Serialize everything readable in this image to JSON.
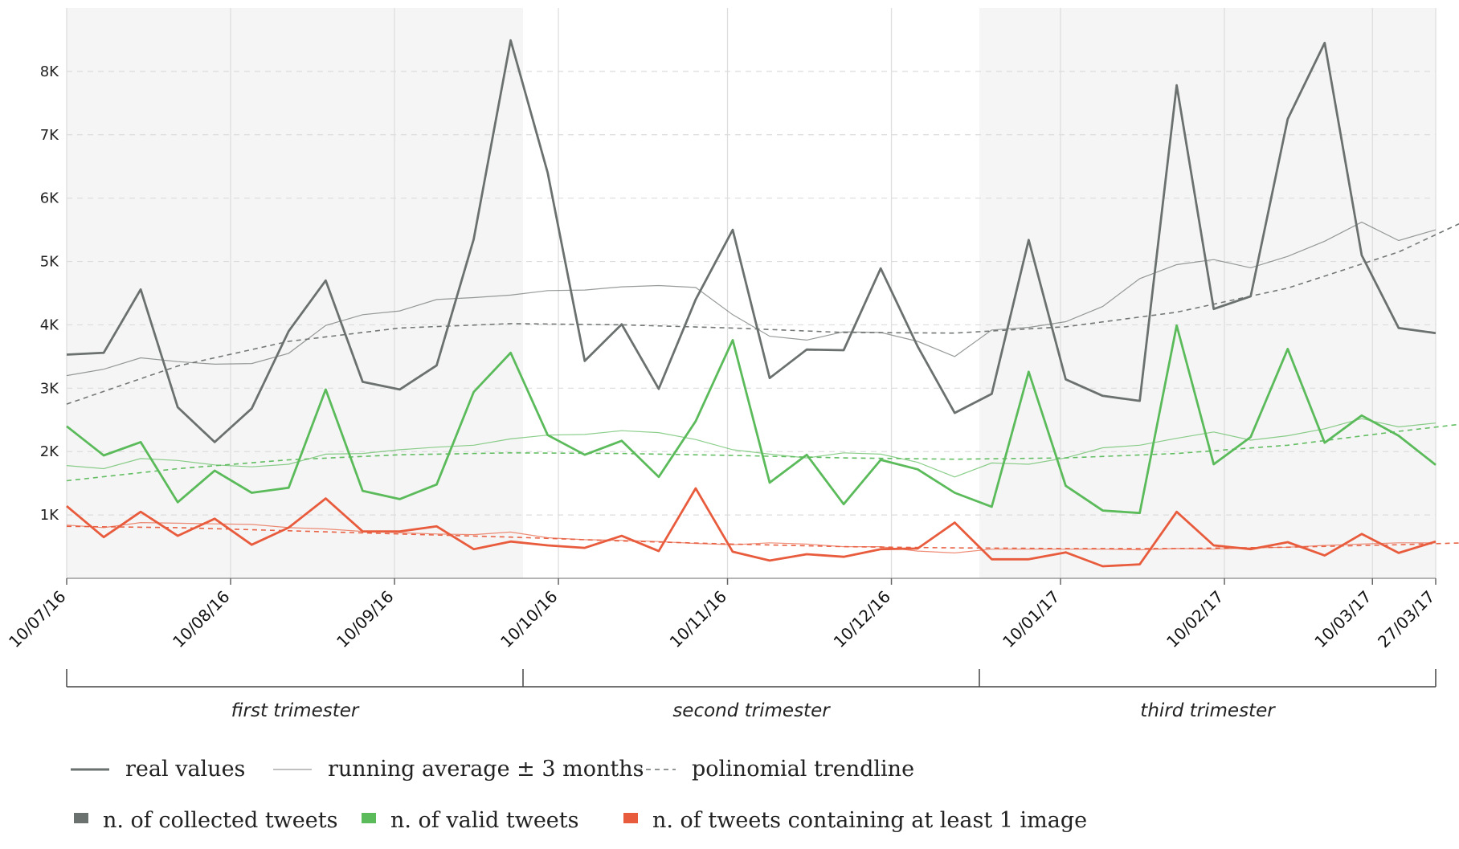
{
  "chart_data": {
    "type": "line",
    "y_ticks": [
      "1K",
      "2K",
      "3K",
      "4K",
      "5K",
      "6K",
      "7K",
      "8K"
    ],
    "ylim": [
      0,
      9000
    ],
    "x_tick_labels": [
      "10/07/16",
      "10/08/16",
      "10/09/16",
      "10/10/16",
      "10/11/16",
      "10/12/16",
      "10/01/17",
      "10/02/17",
      "10/03/17",
      "27/03/17"
    ],
    "x_start": "10/07/16",
    "x_end": "27/03/17",
    "grid": true,
    "trimesters": [
      {
        "label": "first trimester",
        "shaded": true
      },
      {
        "label": "second trimester",
        "shaded": false
      },
      {
        "label": "third trimester",
        "shaded": true
      }
    ],
    "series": [
      {
        "name": "n. of collected tweets",
        "color": "#6b716e",
        "real": [
          [
            0,
            3530
          ],
          [
            1,
            3560
          ],
          [
            2,
            4560
          ],
          [
            3,
            2700
          ],
          [
            4,
            2150
          ],
          [
            5,
            2680
          ],
          [
            6,
            3900
          ],
          [
            7,
            4700
          ],
          [
            8,
            3100
          ],
          [
            9,
            2980
          ],
          [
            10,
            3360
          ],
          [
            11,
            5350
          ],
          [
            12,
            8490
          ],
          [
            13,
            6400
          ],
          [
            14,
            3430
          ],
          [
            15,
            4010
          ],
          [
            16,
            2990
          ],
          [
            17,
            4400
          ],
          [
            18,
            5500
          ],
          [
            19,
            3160
          ],
          [
            20,
            3610
          ],
          [
            21,
            3600
          ],
          [
            22,
            4890
          ],
          [
            23,
            3660
          ],
          [
            24,
            2610
          ],
          [
            25,
            2910
          ],
          [
            26,
            5340
          ],
          [
            27,
            3140
          ],
          [
            28,
            2880
          ],
          [
            29,
            2800
          ],
          [
            30,
            7780
          ],
          [
            31,
            4250
          ],
          [
            32,
            4450
          ],
          [
            33,
            7250
          ],
          [
            34,
            8450
          ],
          [
            35,
            5100
          ],
          [
            36,
            3950
          ],
          [
            37,
            3870
          ]
        ],
        "running_average": [
          [
            0,
            3200
          ],
          [
            1,
            3300
          ],
          [
            2,
            3480
          ],
          [
            3,
            3420
          ],
          [
            4,
            3380
          ],
          [
            5,
            3390
          ],
          [
            6,
            3550
          ],
          [
            7,
            3990
          ],
          [
            8,
            4160
          ],
          [
            9,
            4220
          ],
          [
            10,
            4400
          ],
          [
            11,
            4430
          ],
          [
            12,
            4470
          ],
          [
            13,
            4540
          ],
          [
            14,
            4550
          ],
          [
            15,
            4600
          ],
          [
            16,
            4620
          ],
          [
            17,
            4590
          ],
          [
            18,
            4160
          ],
          [
            19,
            3820
          ],
          [
            20,
            3760
          ],
          [
            21,
            3890
          ],
          [
            22,
            3880
          ],
          [
            23,
            3740
          ],
          [
            24,
            3500
          ],
          [
            25,
            3920
          ],
          [
            26,
            3960
          ],
          [
            27,
            4050
          ],
          [
            28,
            4290
          ],
          [
            29,
            4730
          ],
          [
            30,
            4950
          ],
          [
            31,
            5030
          ],
          [
            32,
            4900
          ],
          [
            33,
            5080
          ],
          [
            34,
            5320
          ],
          [
            35,
            5620
          ],
          [
            36,
            5330
          ],
          [
            37,
            5500
          ]
        ],
        "trendline": [
          [
            0,
            2750
          ],
          [
            3,
            3350
          ],
          [
            6,
            3740
          ],
          [
            9,
            3950
          ],
          [
            12,
            4020
          ],
          [
            15,
            4000
          ],
          [
            18,
            3950
          ],
          [
            21,
            3880
          ],
          [
            24,
            3870
          ],
          [
            27,
            3970
          ],
          [
            30,
            4200
          ],
          [
            33,
            4580
          ],
          [
            36,
            5150
          ],
          [
            37.8,
            5640
          ]
        ]
      },
      {
        "name": "n. of valid tweets",
        "color": "#5bbb5b",
        "real": [
          [
            0,
            2400
          ],
          [
            1,
            1940
          ],
          [
            2,
            2150
          ],
          [
            3,
            1200
          ],
          [
            4,
            1700
          ],
          [
            5,
            1350
          ],
          [
            6,
            1430
          ],
          [
            7,
            2980
          ],
          [
            8,
            1380
          ],
          [
            9,
            1250
          ],
          [
            10,
            1480
          ],
          [
            11,
            2940
          ],
          [
            12,
            3560
          ],
          [
            13,
            2260
          ],
          [
            14,
            1950
          ],
          [
            15,
            2170
          ],
          [
            16,
            1600
          ],
          [
            17,
            2480
          ],
          [
            18,
            3760
          ],
          [
            19,
            1510
          ],
          [
            20,
            1950
          ],
          [
            21,
            1170
          ],
          [
            22,
            1870
          ],
          [
            23,
            1720
          ],
          [
            24,
            1350
          ],
          [
            25,
            1130
          ],
          [
            26,
            3260
          ],
          [
            27,
            1460
          ],
          [
            28,
            1070
          ],
          [
            29,
            1030
          ],
          [
            30,
            3990
          ],
          [
            31,
            1800
          ],
          [
            32,
            2230
          ],
          [
            33,
            3620
          ],
          [
            34,
            2140
          ],
          [
            35,
            2570
          ],
          [
            36,
            2250
          ],
          [
            37,
            1790
          ]
        ],
        "running_average": [
          [
            0,
            1780
          ],
          [
            1,
            1730
          ],
          [
            2,
            1890
          ],
          [
            3,
            1860
          ],
          [
            4,
            1790
          ],
          [
            5,
            1760
          ],
          [
            6,
            1800
          ],
          [
            7,
            1960
          ],
          [
            8,
            1970
          ],
          [
            9,
            2030
          ],
          [
            10,
            2070
          ],
          [
            11,
            2100
          ],
          [
            12,
            2200
          ],
          [
            13,
            2260
          ],
          [
            14,
            2270
          ],
          [
            15,
            2330
          ],
          [
            16,
            2300
          ],
          [
            17,
            2190
          ],
          [
            18,
            2030
          ],
          [
            19,
            1960
          ],
          [
            20,
            1900
          ],
          [
            21,
            1980
          ],
          [
            22,
            1960
          ],
          [
            23,
            1830
          ],
          [
            24,
            1600
          ],
          [
            25,
            1820
          ],
          [
            26,
            1800
          ],
          [
            27,
            1900
          ],
          [
            28,
            2060
          ],
          [
            29,
            2100
          ],
          [
            30,
            2210
          ],
          [
            31,
            2310
          ],
          [
            32,
            2180
          ],
          [
            33,
            2250
          ],
          [
            34,
            2360
          ],
          [
            35,
            2520
          ],
          [
            36,
            2390
          ],
          [
            37,
            2450
          ]
        ],
        "trendline": [
          [
            0,
            1540
          ],
          [
            3,
            1730
          ],
          [
            6,
            1870
          ],
          [
            9,
            1950
          ],
          [
            12,
            1980
          ],
          [
            15,
            1970
          ],
          [
            18,
            1940
          ],
          [
            21,
            1900
          ],
          [
            24,
            1880
          ],
          [
            27,
            1900
          ],
          [
            30,
            1970
          ],
          [
            33,
            2100
          ],
          [
            36,
            2320
          ],
          [
            37.8,
            2440
          ]
        ]
      },
      {
        "name": "n. of tweets containing at least 1 image",
        "color": "#e85c3d",
        "real": [
          [
            0,
            1140
          ],
          [
            1,
            650
          ],
          [
            2,
            1050
          ],
          [
            3,
            670
          ],
          [
            4,
            940
          ],
          [
            5,
            530
          ],
          [
            6,
            800
          ],
          [
            7,
            1260
          ],
          [
            8,
            740
          ],
          [
            9,
            740
          ],
          [
            10,
            820
          ],
          [
            11,
            460
          ],
          [
            12,
            580
          ],
          [
            13,
            520
          ],
          [
            14,
            480
          ],
          [
            15,
            670
          ],
          [
            16,
            430
          ],
          [
            17,
            1420
          ],
          [
            18,
            420
          ],
          [
            19,
            280
          ],
          [
            20,
            380
          ],
          [
            21,
            340
          ],
          [
            22,
            460
          ],
          [
            23,
            470
          ],
          [
            24,
            880
          ],
          [
            25,
            300
          ],
          [
            26,
            300
          ],
          [
            27,
            410
          ],
          [
            28,
            190
          ],
          [
            29,
            220
          ],
          [
            30,
            1050
          ],
          [
            31,
            520
          ],
          [
            32,
            460
          ],
          [
            33,
            570
          ],
          [
            34,
            360
          ],
          [
            35,
            700
          ],
          [
            36,
            400
          ],
          [
            37,
            580
          ]
        ],
        "running_average": [
          [
            0,
            840
          ],
          [
            1,
            800
          ],
          [
            2,
            880
          ],
          [
            3,
            870
          ],
          [
            4,
            860
          ],
          [
            5,
            850
          ],
          [
            6,
            800
          ],
          [
            7,
            780
          ],
          [
            8,
            740
          ],
          [
            9,
            720
          ],
          [
            10,
            700
          ],
          [
            11,
            690
          ],
          [
            12,
            730
          ],
          [
            13,
            640
          ],
          [
            14,
            610
          ],
          [
            15,
            600
          ],
          [
            16,
            580
          ],
          [
            17,
            550
          ],
          [
            18,
            530
          ],
          [
            19,
            560
          ],
          [
            20,
            540
          ],
          [
            21,
            500
          ],
          [
            22,
            500
          ],
          [
            23,
            430
          ],
          [
            24,
            400
          ],
          [
            25,
            460
          ],
          [
            26,
            460
          ],
          [
            27,
            460
          ],
          [
            28,
            460
          ],
          [
            29,
            450
          ],
          [
            30,
            470
          ],
          [
            31,
            460
          ],
          [
            32,
            480
          ],
          [
            33,
            490
          ],
          [
            34,
            520
          ],
          [
            35,
            540
          ],
          [
            36,
            560
          ],
          [
            37,
            560
          ]
        ],
        "trendline": [
          [
            0,
            820
          ],
          [
            3,
            800
          ],
          [
            6,
            750
          ],
          [
            9,
            700
          ],
          [
            12,
            650
          ],
          [
            15,
            590
          ],
          [
            18,
            540
          ],
          [
            21,
            500
          ],
          [
            24,
            480
          ],
          [
            27,
            470
          ],
          [
            30,
            470
          ],
          [
            33,
            490
          ],
          [
            36,
            530
          ],
          [
            37.8,
            560
          ]
        ]
      }
    ],
    "legend": {
      "line_styles": [
        "real values",
        "running average ± 3 months",
        "polinomial trendline"
      ],
      "series_names": [
        "n. of collected tweets",
        "n. of valid tweets",
        "n. of tweets containing at least 1 image"
      ]
    }
  }
}
